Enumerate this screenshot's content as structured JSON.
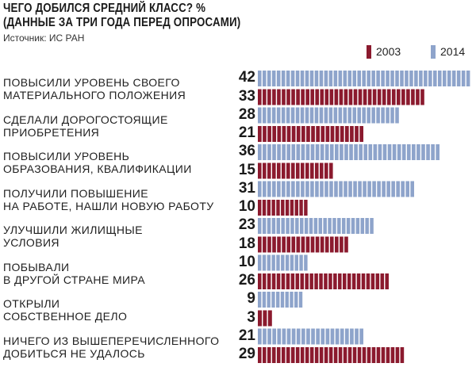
{
  "header": {
    "title_line1": "ЧЕГО ДОБИЛСЯ СРЕДНИЙ КЛАСС? %",
    "title_line2": "(ДАННЫЕ ЗА ТРИ ГОДА ПЕРЕД ОПРОСАМИ)",
    "source": "Источник: ИС РАН"
  },
  "colors": {
    "2003": "#8b1a2e",
    "2014": "#8ea4cb"
  },
  "chart_data": {
    "type": "bar",
    "orientation": "horizontal",
    "title": "ЧЕГО ДОБИЛСЯ СРЕДНИЙ КЛАСС? % (ДАННЫЕ ЗА ТРИ ГОДА ПЕРЕД ОПРОСАМИ)",
    "legend": [
      "2003",
      "2014"
    ],
    "categories": [
      [
        "ПОВЫСИЛИ УРОВЕНЬ СВОЕГО",
        "МАТЕРИАЛЬНОГО ПОЛОЖЕНИЯ"
      ],
      [
        "СДЕЛАЛИ ДОРОГОСТОЯЩИЕ",
        "ПРИОБРЕТЕНИЯ"
      ],
      [
        "ПОВЫСИЛИ УРОВЕНЬ",
        "ОБРАЗОВАНИЯ, КВАЛИФИКАЦИИ"
      ],
      [
        "ПОЛУЧИЛИ ПОВЫШЕНИЕ",
        "НА РАБОТЕ, НАШЛИ НОВУЮ РАБОТУ"
      ],
      [
        "УЛУЧШИЛИ ЖИЛИЩНЫЕ",
        "УСЛОВИЯ"
      ],
      [
        "ПОБЫВАЛИ",
        "В ДРУГОЙ СТРАНЕ МИРА"
      ],
      [
        "ОТКРЫЛИ",
        "СОБСТВЕННОЕ ДЕЛО"
      ],
      [
        "НИЧЕГО ИЗ ВЫШЕПЕРЕЧИСЛЕННОГО",
        "ДОБИТЬСЯ НЕ УДАЛОСЬ"
      ]
    ],
    "series": [
      {
        "name": "2014",
        "values": [
          42,
          28,
          36,
          31,
          23,
          10,
          9,
          21
        ]
      },
      {
        "name": "2003",
        "values": [
          33,
          21,
          15,
          10,
          18,
          26,
          3,
          29
        ]
      }
    ],
    "unit": "%"
  }
}
